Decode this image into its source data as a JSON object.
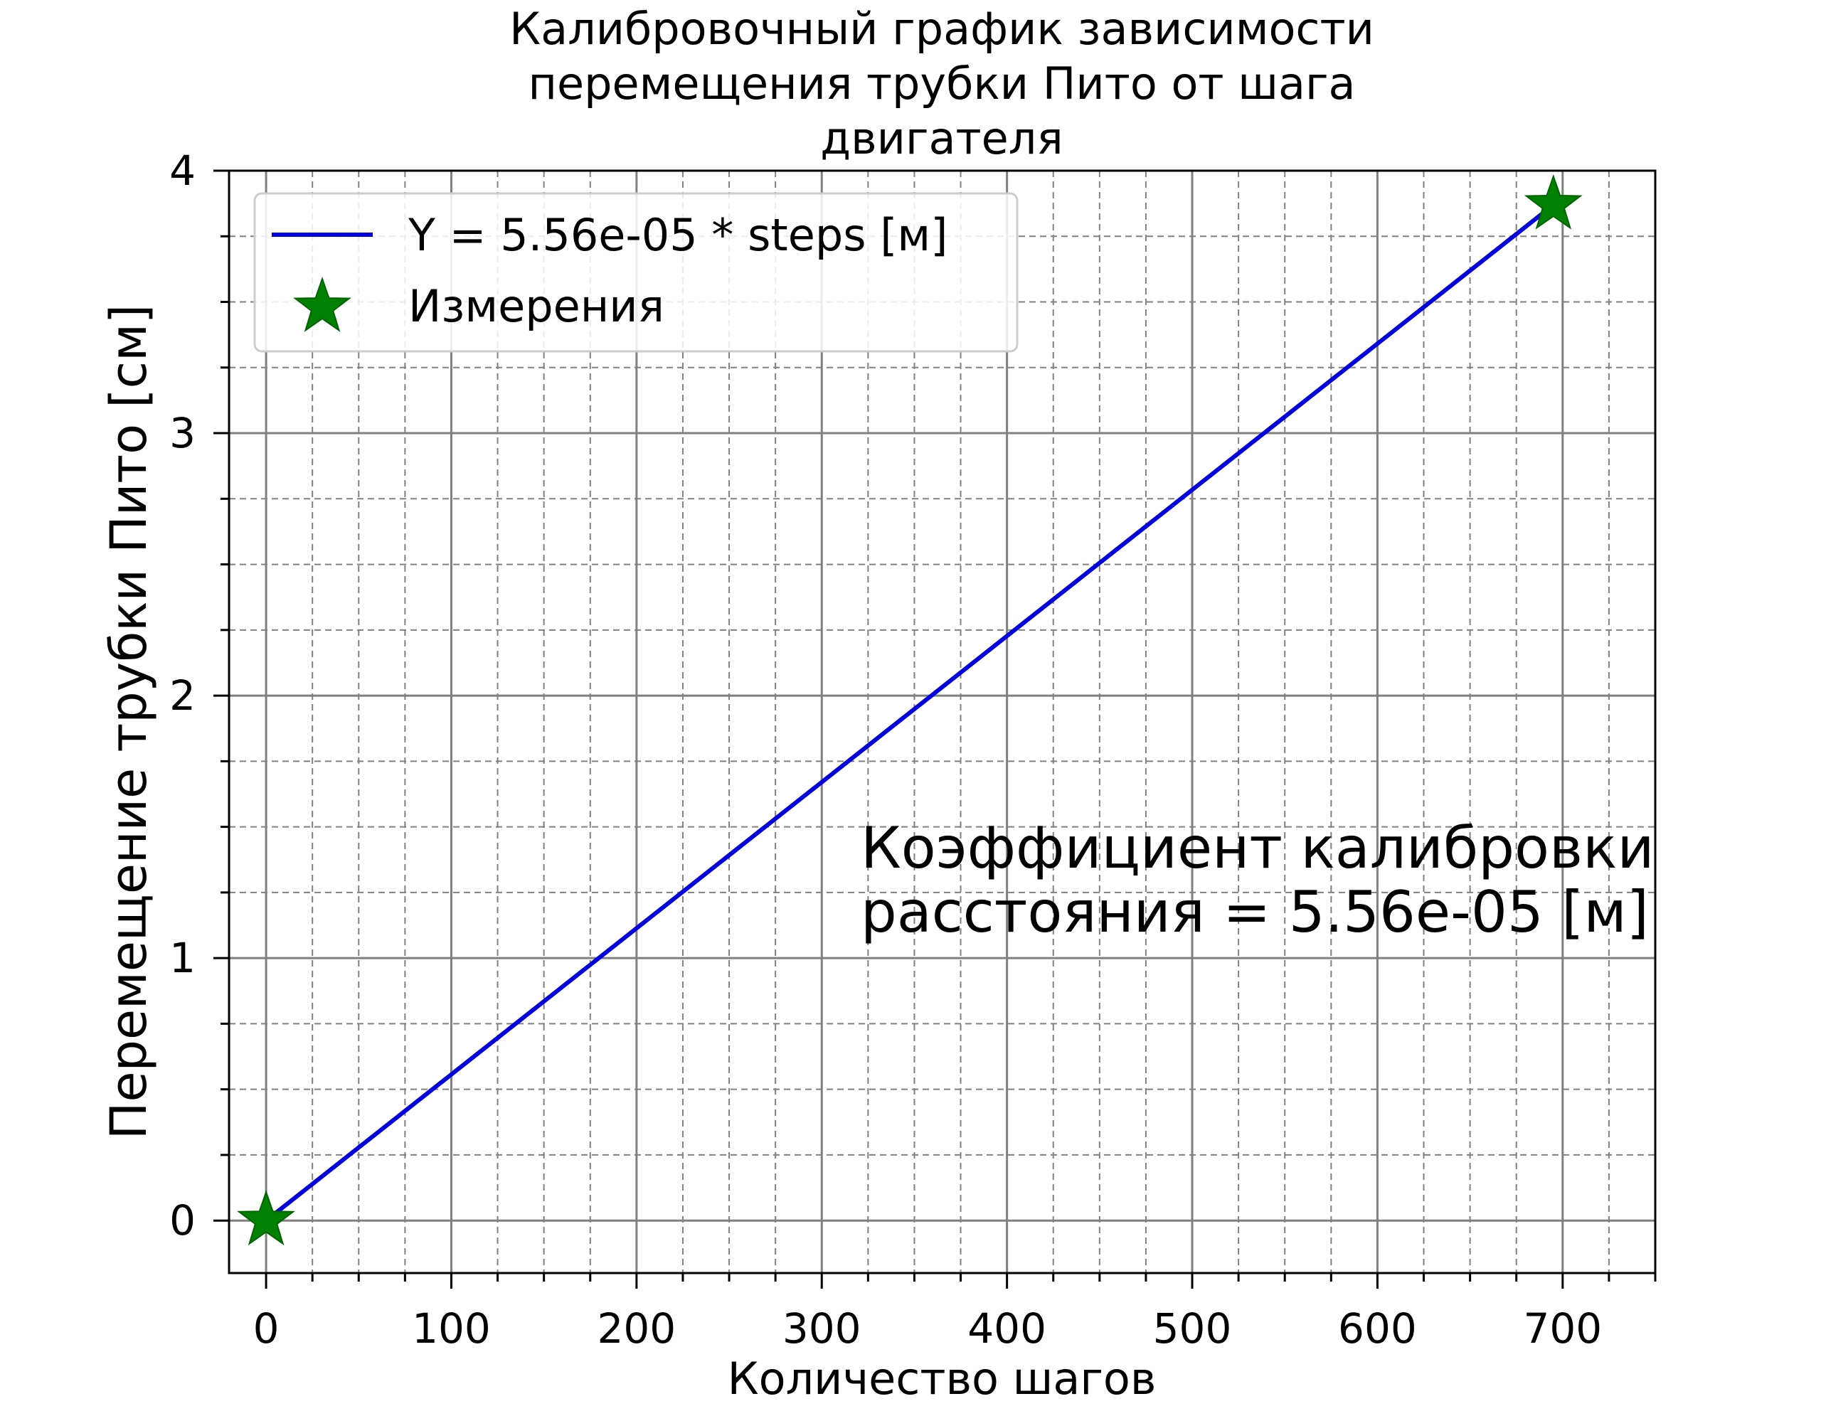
{
  "chart_data": {
    "type": "line",
    "title_lines": [
      "Калибровочный график зависимости",
      "перемещения трубки Пито от шага",
      "двигателя"
    ],
    "xlabel": "Количество шагов",
    "ylabel": "Перемещение трубки Пито [см]",
    "xlim": [
      -20,
      750
    ],
    "ylim": [
      -0.2,
      4.0
    ],
    "x_ticks": [
      0,
      100,
      200,
      300,
      400,
      500,
      600,
      700
    ],
    "x_tick_labels": [
      "0",
      "100",
      "200",
      "300",
      "400",
      "500",
      "600",
      "700"
    ],
    "x_minor_ticks": [
      25,
      50,
      75,
      125,
      150,
      175,
      225,
      250,
      275,
      325,
      350,
      375,
      425,
      450,
      475,
      525,
      550,
      575,
      625,
      650,
      675,
      725,
      750
    ],
    "y_ticks": [
      0,
      1,
      2,
      3,
      4
    ],
    "y_tick_labels": [
      "0",
      "1",
      "2",
      "3",
      "4"
    ],
    "y_minor_ticks": [
      0.25,
      0.5,
      0.75,
      1.25,
      1.5,
      1.75,
      2.25,
      2.5,
      2.75,
      3.25,
      3.5,
      3.75
    ],
    "grid": true,
    "legend_position": "upper-left",
    "series": [
      {
        "name": "Y = 5.56e-05 * steps [м]",
        "kind": "line",
        "color": "#0000dd",
        "x": [
          0,
          695
        ],
        "y": [
          0,
          3.87
        ]
      },
      {
        "name": "Измерения",
        "kind": "scatter",
        "marker": "star",
        "color": "#008000",
        "x": [
          0,
          695
        ],
        "y": [
          0,
          3.87
        ]
      }
    ],
    "annotation_lines": [
      "Коэффициент калибровки",
      "расстояния = 5.56e-05 [м]"
    ]
  }
}
